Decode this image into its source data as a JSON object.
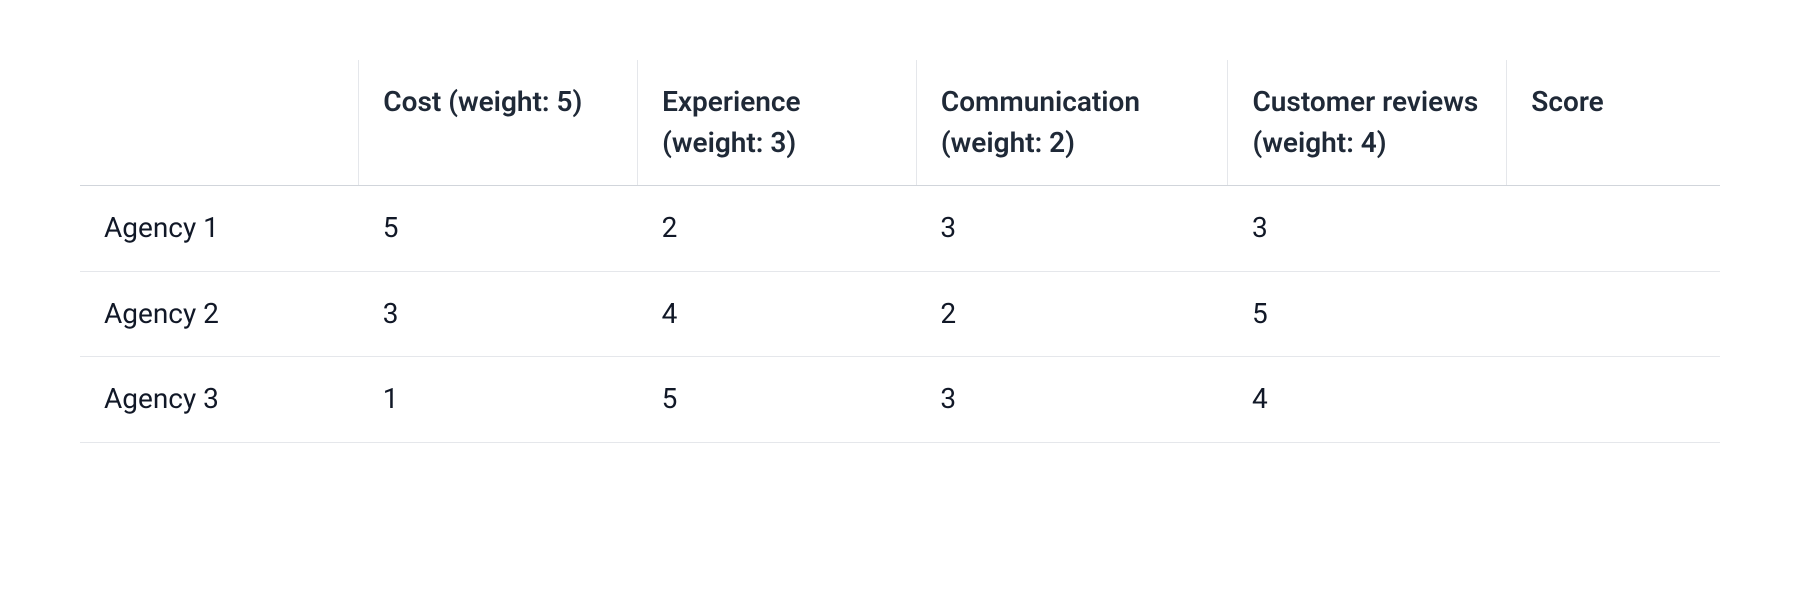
{
  "table": {
    "type": "table",
    "columns": [
      "",
      "Cost (weight: 5)",
      "Experience (weight: 3)",
      "Communication (weight: 2)",
      "Customer reviews (weight: 4)",
      "Score"
    ],
    "rows": [
      {
        "label": "Agency 1",
        "cost": "5",
        "experience": "2",
        "communication": "3",
        "reviews": "3",
        "score": ""
      },
      {
        "label": "Agency 2",
        "cost": "3",
        "experience": "4",
        "communication": "2",
        "reviews": "5",
        "score": ""
      },
      {
        "label": "Agency 3",
        "cost": "1",
        "experience": "5",
        "communication": "3",
        "reviews": "4",
        "score": ""
      }
    ],
    "styling": {
      "header_font_weight": 600,
      "header_color": "#1f2937",
      "body_color": "#111827",
      "font_size_pt": 21,
      "header_border_color": "#d1d5db",
      "row_border_color": "#e5e7eb",
      "column_separator_color": "#e5e7eb",
      "background_color": "#ffffff",
      "column_widths_pct": [
        17,
        17,
        17,
        19,
        17,
        13
      ]
    }
  }
}
